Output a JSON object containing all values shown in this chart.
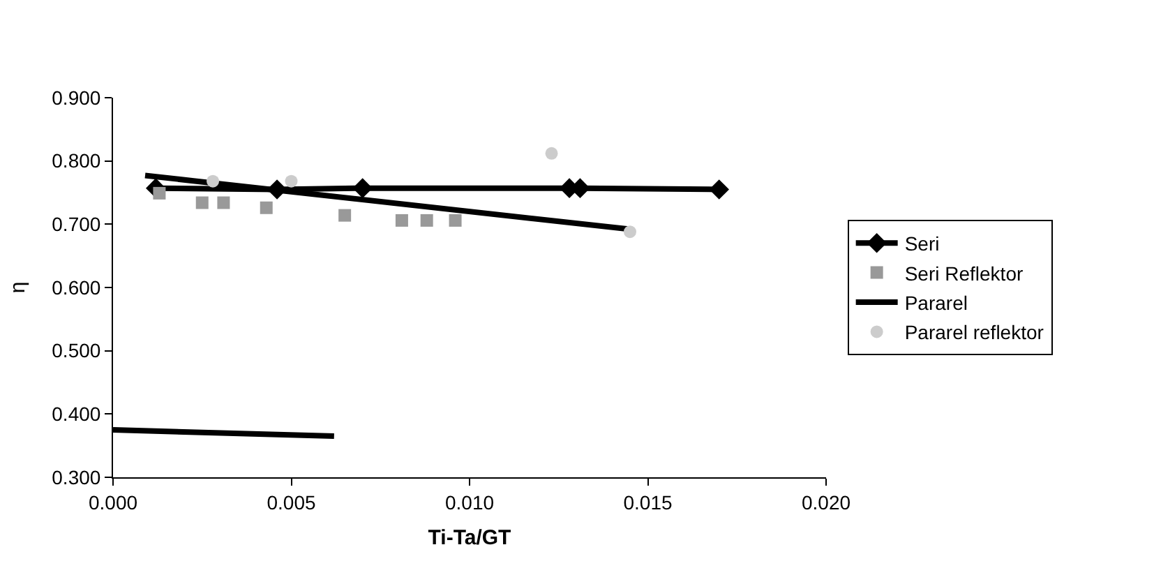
{
  "chart_data": {
    "type": "line",
    "xlabel": "Ti-Ta/GT",
    "ylabel": "η",
    "xlim": [
      0,
      0.02
    ],
    "xticks": [
      {
        "value": 0,
        "label": "0.000"
      },
      {
        "value": 0.005,
        "label": "0.005"
      },
      {
        "value": 0.01,
        "label": "0.010"
      },
      {
        "value": 0.015,
        "label": "0.015"
      },
      {
        "value": 0.02,
        "label": "0.020"
      }
    ],
    "ylim": [
      0.3,
      0.9
    ],
    "yticks": [
      {
        "value": 0.3,
        "label": "0.300"
      },
      {
        "value": 0.4,
        "label": "0.400"
      },
      {
        "value": 0.5,
        "label": "0.500"
      },
      {
        "value": 0.6,
        "label": "0.600"
      },
      {
        "value": 0.7,
        "label": "0.700"
      },
      {
        "value": 0.8,
        "label": "0.800"
      },
      {
        "value": 0.9,
        "label": "0.900"
      }
    ],
    "legend": "right",
    "series": [
      {
        "marker": "none",
        "color": "#000000",
        "x": [
          0.0009,
          0.0145
        ],
        "values": [
          0.777,
          0.692
        ]
      },
      {
        "name": "Seri",
        "marker": "diamond",
        "color": "#000000",
        "x": [
          0.0012,
          0.0046,
          0.007,
          0.0128,
          0.0131,
          0.017
        ],
        "values": [
          0.757,
          0.755,
          0.757,
          0.757,
          0.757,
          0.755
        ]
      },
      {
        "name": "Seri Reflektor",
        "type": "scatter",
        "marker": "square",
        "color": "#999999",
        "x": [
          0.0013,
          0.0025,
          0.0031,
          0.0043,
          0.0065,
          0.0081,
          0.0088,
          0.0096
        ],
        "values": [
          0.749,
          0.734,
          0.734,
          0.726,
          0.714,
          0.706,
          0.706,
          0.706
        ]
      },
      {
        "name": "Pararel",
        "marker": "none",
        "color": "#000000",
        "x": [
          0.0,
          0.0062
        ],
        "values": [
          0.375,
          0.365
        ]
      },
      {
        "name": "Pararel reflektor",
        "type": "scatter",
        "marker": "circle",
        "color": "#cccccc",
        "x": [
          0.0028,
          0.005,
          0.0123,
          0.0145
        ],
        "values": [
          0.768,
          0.768,
          0.812,
          0.688
        ]
      }
    ]
  }
}
